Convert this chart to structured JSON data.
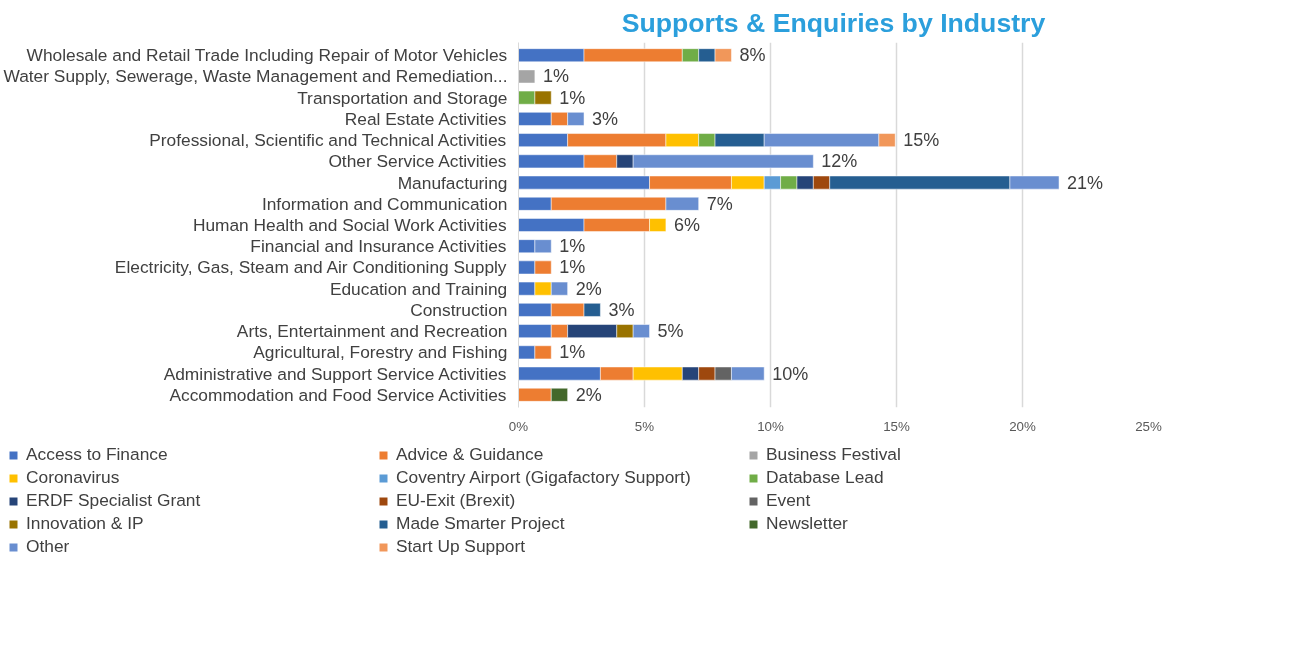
{
  "chart_data": {
    "type": "bar",
    "orientation": "horizontal",
    "stacked": true,
    "title": "Supports & Enquiries by Industry",
    "categories": [
      "Wholesale and Retail Trade Including Repair of Motor Vehicles",
      "Water Supply, Sewerage, Waste Management and Remediation...",
      "Transportation and Storage",
      "Real Estate Activities",
      "Professional, Scientific and Technical Activities",
      "Other Service Activities",
      "Manufacturing",
      "Information and Communication",
      "Human Health and Social Work Activities",
      "Financial and Insurance Activities",
      "Electricity, Gas, Steam and Air Conditioning Supply",
      "Education and Training",
      "Construction",
      "Arts, Entertainment and Recreation",
      "Agricultural, Forestry and Fishing",
      "Administrative and Support Service Activities",
      "Accommodation and Food Service Activities"
    ],
    "series": [
      {
        "name": "Access to Finance",
        "color": "#4472c4",
        "values": [
          2.6,
          0,
          0,
          1.3,
          1.95,
          2.6,
          5.2,
          1.3,
          2.6,
          0.65,
          0.65,
          0.65,
          1.3,
          1.3,
          0.65,
          3.25,
          0
        ]
      },
      {
        "name": "Advice & Guidance",
        "color": "#ed7d31",
        "values": [
          3.9,
          0,
          0,
          0.65,
          3.9,
          1.3,
          3.25,
          4.55,
          2.6,
          0,
          0.65,
          0,
          1.3,
          0.65,
          0.65,
          1.3,
          1.3
        ]
      },
      {
        "name": "Business Festival",
        "color": "#a5a5a5",
        "values": [
          0,
          0.65,
          0,
          0,
          0,
          0,
          0,
          0,
          0,
          0,
          0,
          0,
          0,
          0,
          0,
          0,
          0
        ]
      },
      {
        "name": "Coronavirus",
        "color": "#ffc000",
        "values": [
          0,
          0,
          0,
          0,
          1.3,
          0,
          1.3,
          0,
          0.65,
          0,
          0,
          0.65,
          0,
          0,
          0,
          1.95,
          0
        ]
      },
      {
        "name": "Coventry Airport (Gigafactory Support)",
        "color": "#5b9bd5",
        "values": [
          0,
          0,
          0,
          0,
          0,
          0,
          0.65,
          0,
          0,
          0,
          0,
          0,
          0,
          0,
          0,
          0,
          0
        ]
      },
      {
        "name": "Database Lead",
        "color": "#70ad47",
        "values": [
          0.65,
          0,
          0.65,
          0,
          0.65,
          0,
          0.65,
          0,
          0,
          0,
          0,
          0,
          0,
          0,
          0,
          0,
          0
        ]
      },
      {
        "name": "ERDF Specialist Grant",
        "color": "#264478",
        "values": [
          0,
          0,
          0,
          0,
          0,
          0.65,
          0.65,
          0,
          0,
          0,
          0,
          0,
          0,
          1.95,
          0,
          0.65,
          0
        ]
      },
      {
        "name": "EU-Exit (Brexit)",
        "color": "#9e480e",
        "values": [
          0,
          0,
          0,
          0,
          0,
          0,
          0.65,
          0,
          0,
          0,
          0,
          0,
          0,
          0,
          0,
          0.65,
          0
        ]
      },
      {
        "name": "Event",
        "color": "#636363",
        "values": [
          0,
          0,
          0,
          0,
          0,
          0,
          0,
          0,
          0,
          0,
          0,
          0,
          0,
          0,
          0,
          0.65,
          0
        ]
      },
      {
        "name": "Innovation & IP",
        "color": "#997300",
        "values": [
          0,
          0,
          0.65,
          0,
          0,
          0,
          0,
          0,
          0,
          0,
          0,
          0,
          0,
          0.65,
          0,
          0,
          0
        ]
      },
      {
        "name": "Made Smarter Project",
        "color": "#255e91",
        "values": [
          0.65,
          0,
          0,
          0,
          1.95,
          0,
          7.15,
          0,
          0,
          0,
          0,
          0,
          0.65,
          0,
          0,
          0,
          0
        ]
      },
      {
        "name": "Newsletter",
        "color": "#43682b",
        "values": [
          0,
          0,
          0,
          0,
          0,
          0,
          0,
          0,
          0,
          0,
          0,
          0,
          0,
          0,
          0,
          0,
          0.65
        ]
      },
      {
        "name": "Other",
        "color": "#698ed0",
        "values": [
          0,
          0,
          0,
          0.65,
          4.55,
          7.15,
          1.95,
          1.3,
          0,
          0.65,
          0,
          0.65,
          0,
          0.65,
          0,
          1.3,
          0
        ]
      },
      {
        "name": "Start Up Support",
        "color": "#f1975a",
        "values": [
          0.65,
          0,
          0,
          0,
          0.65,
          0,
          0,
          0,
          0,
          0,
          0,
          0,
          0,
          0,
          0,
          0,
          0
        ]
      }
    ],
    "totals": [
      "8%",
      "1%",
      "1%",
      "3%",
      "15%",
      "12%",
      "21%",
      "7%",
      "6%",
      "1%",
      "1%",
      "2%",
      "3%",
      "5%",
      "1%",
      "10%",
      "2%"
    ],
    "xlim": [
      0,
      25
    ],
    "xticks": [
      {
        "value": 0,
        "label": "0%"
      },
      {
        "value": 5,
        "label": "5%"
      },
      {
        "value": 10,
        "label": "10%"
      },
      {
        "value": 15,
        "label": "15%"
      },
      {
        "value": 20,
        "label": "20%"
      },
      {
        "value": 25,
        "label": "25%"
      }
    ],
    "grid": "x",
    "legend": "bottom"
  }
}
